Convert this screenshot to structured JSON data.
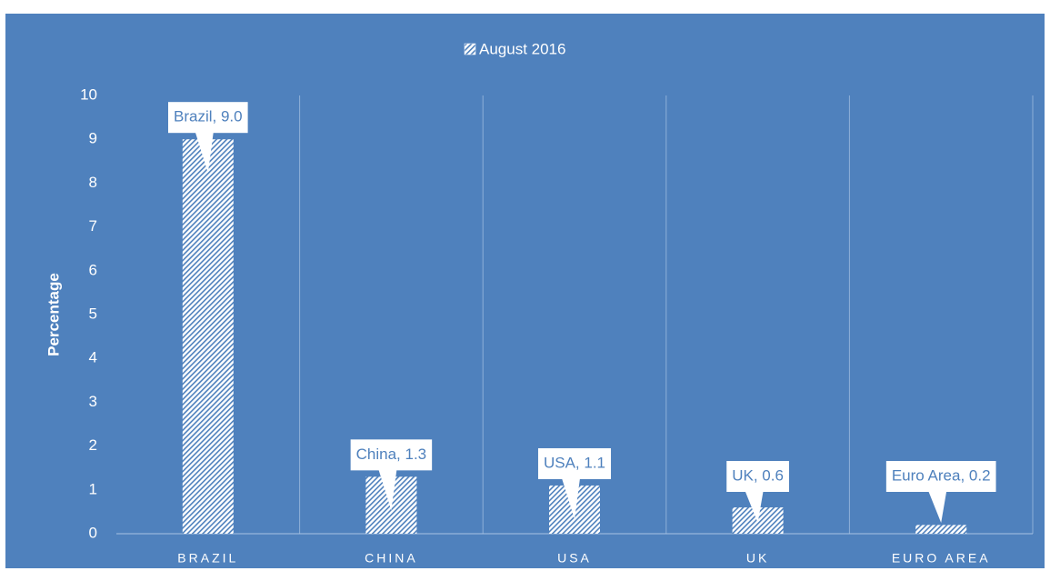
{
  "chart_data": {
    "type": "bar",
    "legend": "August 2016",
    "y_label": "Percentage",
    "categories": [
      "BRAZIL",
      "CHINA",
      "USA",
      "UK",
      "EURO AREA"
    ],
    "values": [
      9.0,
      1.3,
      1.1,
      0.6,
      0.2
    ],
    "value_labels": [
      "Brazil, 9.0",
      "China, 1.3",
      "USA, 1.1",
      "UK, 0.6",
      "Euro Area, 0.2"
    ],
    "ylim": [
      0,
      10
    ],
    "yticks": [
      0,
      1,
      2,
      3,
      4,
      5,
      6,
      7,
      8,
      9,
      10
    ],
    "color": "#4f81bd",
    "grid": false
  }
}
